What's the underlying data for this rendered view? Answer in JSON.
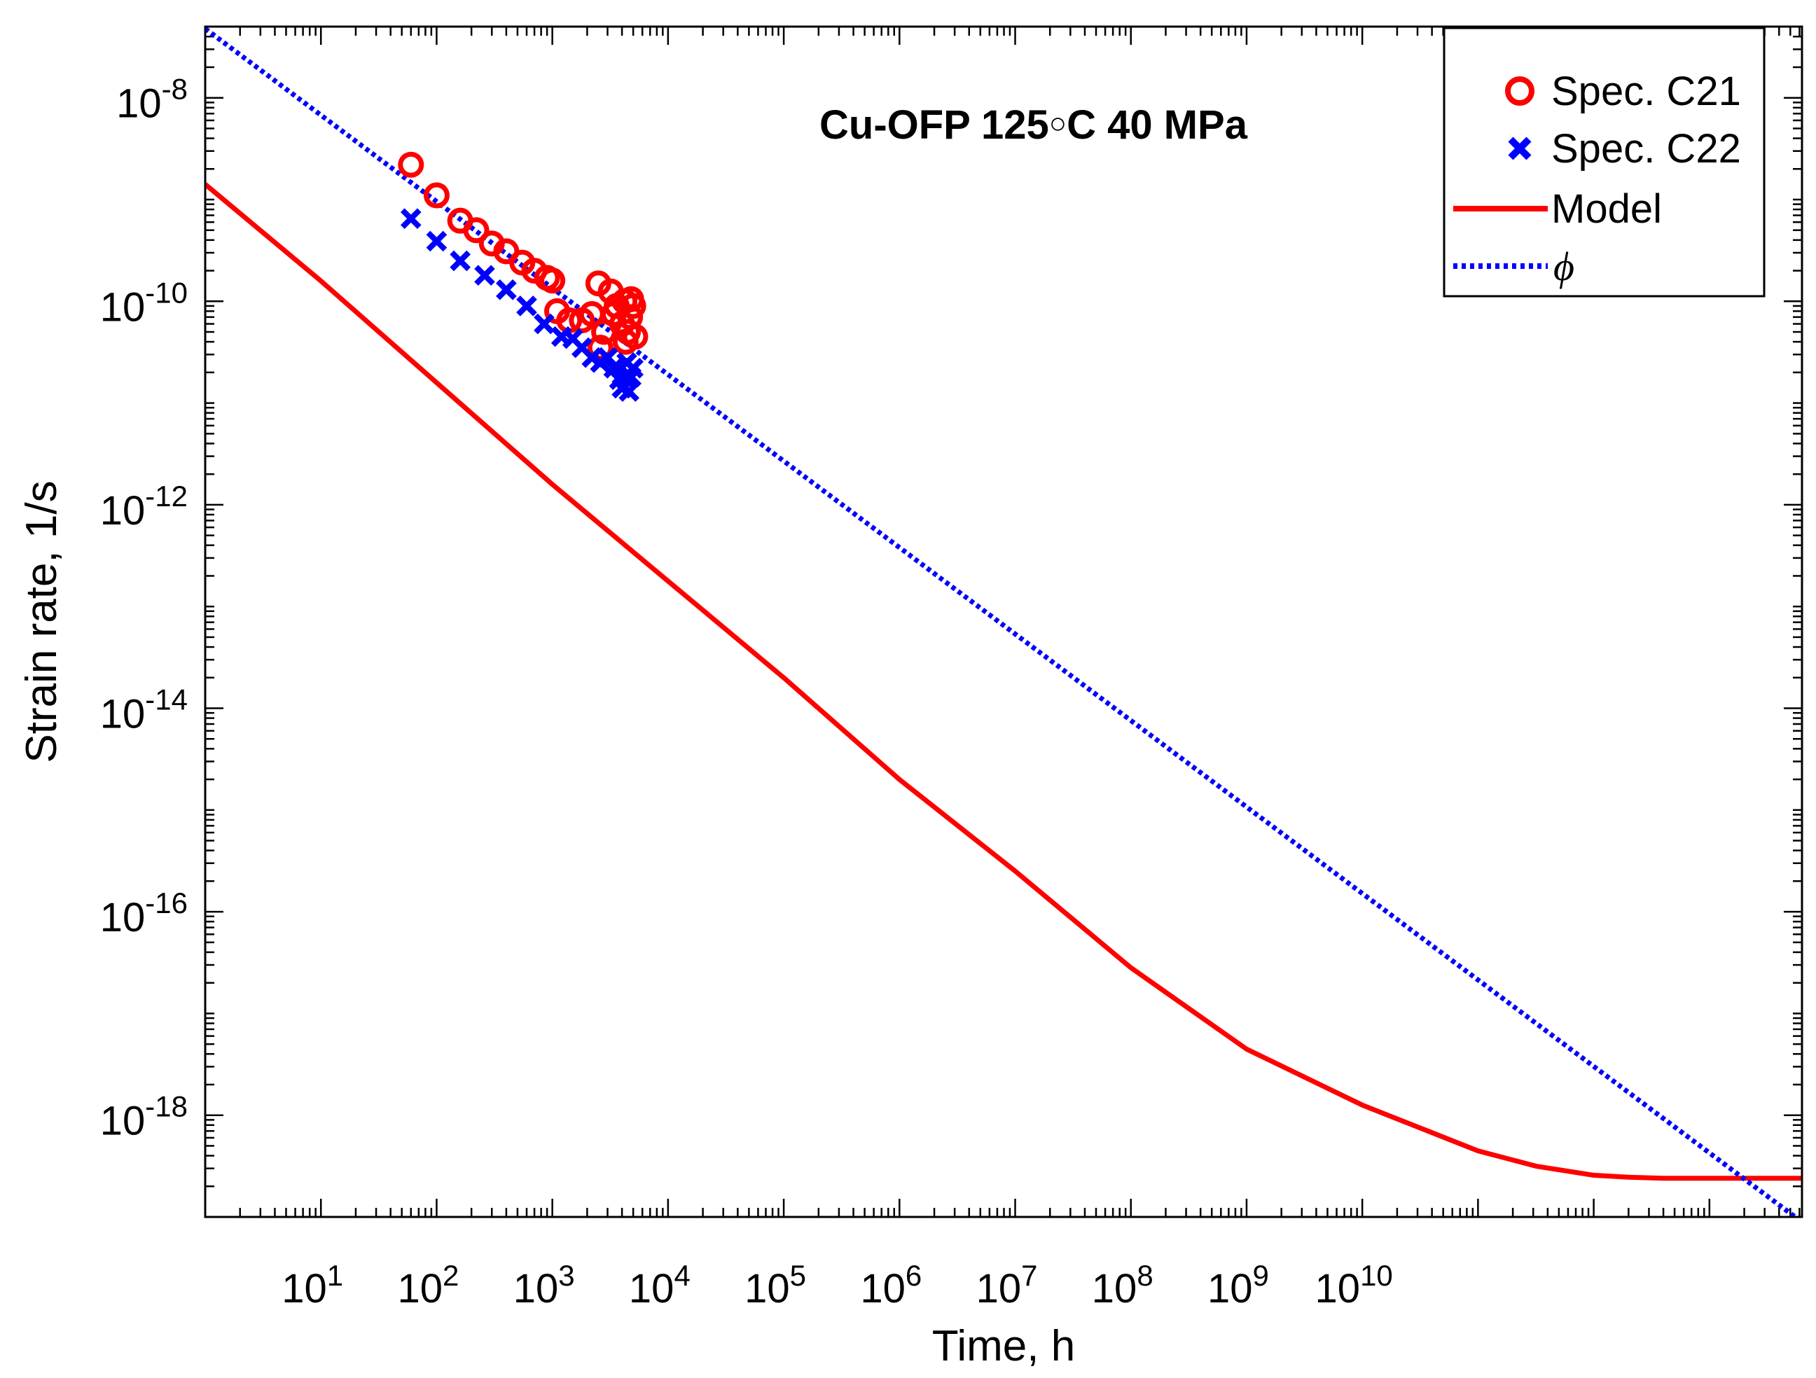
{
  "chart_data": {
    "type": "scatter",
    "title": "Cu-OFP 125°C 40 MPa",
    "title_temp": "125",
    "title_unit": "C 40 MPa",
    "title_prefix": "Cu-OFP ",
    "xlabel": "Time, h",
    "ylabel": "Strain rate, 1/s",
    "x_scale": "log",
    "y_scale": "log",
    "xlim_log10": [
      0,
      13.8
    ],
    "ylim_log10": [
      -19,
      -7.3
    ],
    "x_tick_labels": [
      {
        "exp": 1,
        "base": "10",
        "sup": "1"
      },
      {
        "exp": 2,
        "base": "10",
        "sup": "2"
      },
      {
        "exp": 3,
        "base": "10",
        "sup": "3"
      },
      {
        "exp": 4,
        "base": "10",
        "sup": "4"
      },
      {
        "exp": 5,
        "base": "10",
        "sup": "5"
      },
      {
        "exp": 6,
        "base": "10",
        "sup": "6"
      },
      {
        "exp": 7,
        "base": "10",
        "sup": "7"
      },
      {
        "exp": 8,
        "base": "10",
        "sup": "8"
      },
      {
        "exp": 9,
        "base": "10",
        "sup": "9"
      },
      {
        "exp": 10,
        "base": "10",
        "sup": "10"
      }
    ],
    "y_tick_labels": [
      {
        "exp": -8,
        "base": "10",
        "sup": "-8"
      },
      {
        "exp": -10,
        "base": "10",
        "sup": "-10"
      },
      {
        "exp": -12,
        "base": "10",
        "sup": "-12"
      },
      {
        "exp": -14,
        "base": "10",
        "sup": "-14"
      },
      {
        "exp": -16,
        "base": "10",
        "sup": "-16"
      },
      {
        "exp": -18,
        "base": "10",
        "sup": "-18"
      }
    ],
    "legend_position": "top-right",
    "series": [
      {
        "name": "Spec. C21",
        "marker": "circle",
        "color": "#ff0000",
        "x": [
          60,
          100,
          160,
          220,
          300,
          400,
          550,
          700,
          900,
          1000,
          1100,
          1400,
          1800,
          2200,
          2500,
          2800,
          3200,
          3600,
          4000,
          4200,
          4500,
          4700,
          4800,
          5000,
          5200,
          2600,
          3400,
          4300
        ],
        "y": [
          2.2e-09,
          1.1e-09,
          6.2e-10,
          5e-10,
          3.7e-10,
          3.1e-10,
          2.4e-10,
          2e-10,
          1.7e-10,
          1.6e-10,
          8e-11,
          6.5e-11,
          6.5e-11,
          7.5e-11,
          1.5e-10,
          5e-11,
          1.25e-10,
          9e-11,
          6e-11,
          1e-10,
          5e-11,
          7e-11,
          1.05e-10,
          9e-11,
          4.5e-11,
          3.5e-11,
          7.5e-11,
          4e-11
        ]
      },
      {
        "name": "Spec. C22",
        "marker": "x",
        "color": "#0000ff",
        "x": [
          60,
          100,
          160,
          260,
          400,
          600,
          850,
          1200,
          1500,
          1800,
          2200,
          2600,
          3000,
          3400,
          3800,
          4000,
          4200,
          4400,
          4600,
          4800,
          5000
        ],
        "y": [
          6.5e-10,
          3.9e-10,
          2.5e-10,
          1.8e-10,
          1.3e-10,
          9e-11,
          6e-11,
          4.5e-11,
          4.3e-11,
          3.5e-11,
          2.8e-11,
          2.5e-11,
          2.8e-11,
          2.2e-11,
          1.7e-11,
          1.4e-11,
          1.8e-11,
          2.5e-11,
          1.3e-11,
          1.8e-11,
          2.2e-11
        ]
      },
      {
        "name": "Model",
        "line": "solid",
        "color": "#ff0000",
        "x_log10": [
          0,
          1,
          2,
          3,
          4,
          5,
          6,
          7,
          8,
          9,
          10,
          11,
          11.5,
          12,
          12.3,
          12.6,
          12.8,
          13,
          13.8
        ],
        "y_log10": [
          -8.85,
          -9.8,
          -10.8,
          -11.8,
          -12.75,
          -13.7,
          -14.7,
          -15.6,
          -16.55,
          -17.35,
          -17.9,
          -18.35,
          -18.5,
          -18.59,
          -18.61,
          -18.62,
          -18.62,
          -18.62,
          -18.62
        ]
      },
      {
        "name": "ϕ",
        "line": "dotted",
        "color": "#0000ff",
        "x_log10": [
          0,
          13.8
        ],
        "y_log10": [
          -7.32,
          -19.05
        ]
      }
    ]
  },
  "legend": {
    "c21": "Spec. C21",
    "c22": "Spec. C22",
    "model": "Model",
    "phi": "ϕ"
  }
}
